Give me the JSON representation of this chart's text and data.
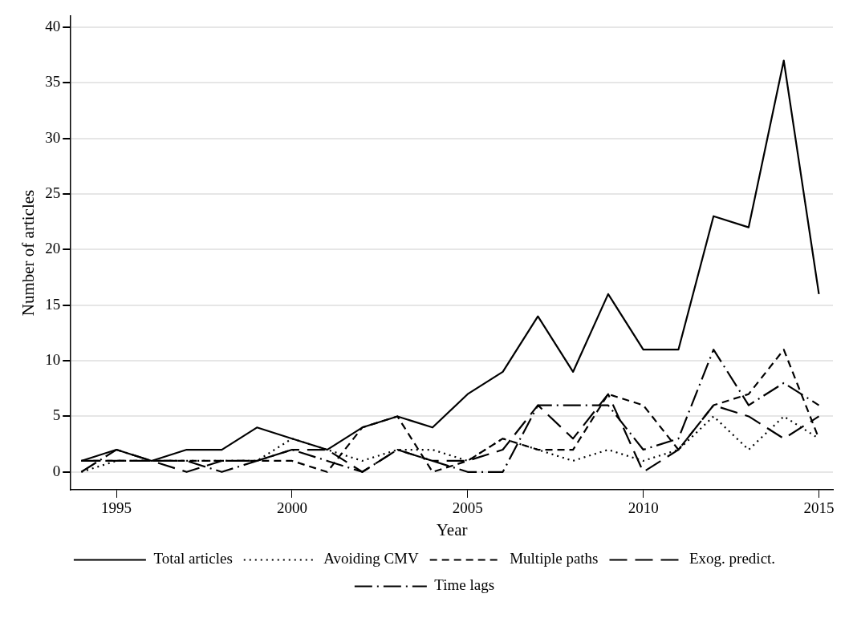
{
  "chart_data": {
    "type": "line",
    "xlabel": "Year",
    "ylabel": "Number of articles",
    "x": [
      1994,
      1995,
      1996,
      1997,
      1998,
      1999,
      2000,
      2001,
      2002,
      2003,
      2004,
      2005,
      2006,
      2007,
      2008,
      2009,
      2010,
      2011,
      2012,
      2013,
      2014,
      2015
    ],
    "xlim": [
      1993.7,
      2015.4
    ],
    "xticks": [
      1995,
      2000,
      2005,
      2010,
      2015
    ],
    "ylim": [
      -1.6,
      41
    ],
    "yticks": [
      0,
      5,
      10,
      15,
      20,
      25,
      30,
      35,
      40
    ],
    "grid": "y",
    "legend": "bottom",
    "marker": "none",
    "series": [
      {
        "name": "Total articles",
        "color": "#000000",
        "line_style": "solid",
        "values": [
          1,
          2,
          1,
          2,
          2,
          4,
          3,
          2,
          4,
          5,
          4,
          7,
          9,
          14,
          9,
          16,
          11,
          11,
          23,
          22,
          37,
          16
        ]
      },
      {
        "name": "Avoiding CMV",
        "color": "#000000",
        "line_style": "dotted",
        "values": [
          0,
          1,
          1,
          1,
          1,
          1,
          3,
          2,
          1,
          2,
          2,
          1,
          3,
          2,
          1,
          2,
          1,
          2,
          5,
          2,
          5,
          3
        ]
      },
      {
        "name": "Multiple paths",
        "color": "#000000",
        "line_style": "dashed",
        "values": [
          1,
          1,
          1,
          1,
          1,
          1,
          1,
          0,
          4,
          5,
          0,
          1,
          3,
          2,
          2,
          7,
          6,
          2,
          6,
          7,
          11,
          3
        ]
      },
      {
        "name": "Exog. predict.",
        "color": "#000000",
        "line_style": "longdash",
        "values": [
          1,
          1,
          1,
          0,
          1,
          1,
          2,
          2,
          0,
          2,
          1,
          1,
          2,
          6,
          3,
          7,
          0,
          2,
          6,
          5,
          3,
          5
        ]
      },
      {
        "name": "Time lags",
        "color": "#000000",
        "line_style": "dashdot",
        "values": [
          0,
          2,
          1,
          1,
          0,
          1,
          2,
          1,
          0,
          2,
          1,
          0,
          0,
          6,
          6,
          6,
          2,
          3,
          11,
          6,
          8,
          6
        ]
      }
    ]
  }
}
